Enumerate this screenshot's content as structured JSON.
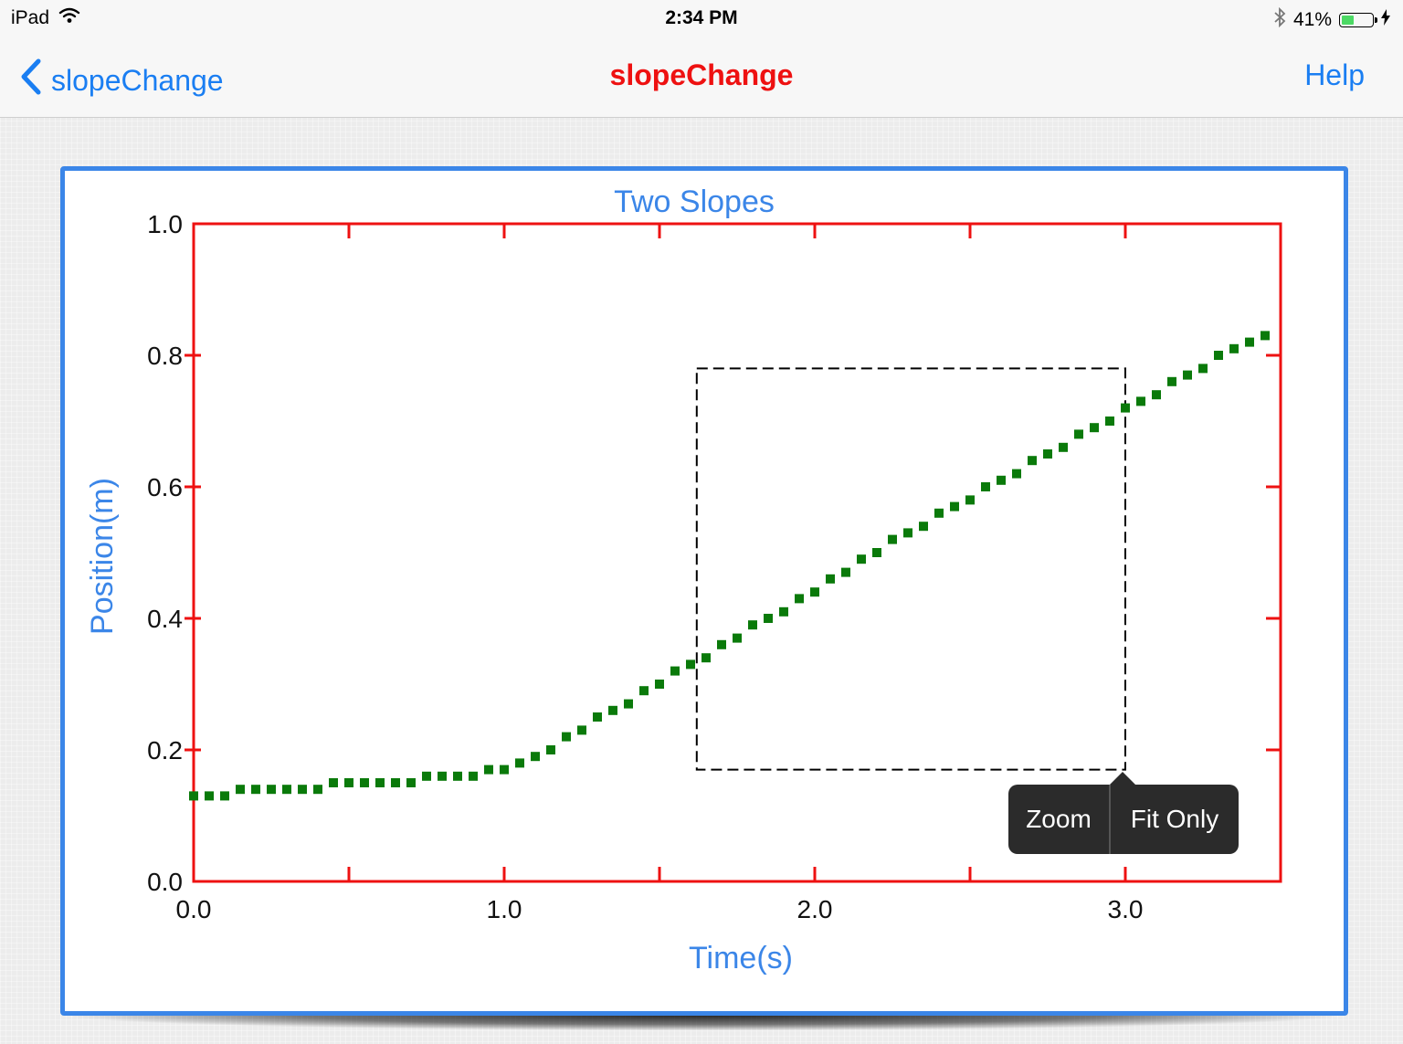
{
  "status_bar": {
    "device": "iPad",
    "time": "2:34 PM",
    "battery": "41%",
    "battery_fraction": 0.41,
    "battery_color": "#4cd964"
  },
  "nav": {
    "back_label": "slopeChange",
    "title": "slopeChange",
    "help_label": "Help",
    "accent": "#1a7ef2",
    "title_color": "#ee1111"
  },
  "popup": {
    "zoom_label": "Zoom",
    "fit_label": "Fit Only"
  },
  "chart_data": {
    "type": "scatter",
    "title": "Two Slopes",
    "xlabel": "Time(s)",
    "ylabel": "Position(m)",
    "xlim": [
      0,
      3.5
    ],
    "ylim": [
      0,
      1.0
    ],
    "x_ticks": [
      "0.0",
      "1.0",
      "2.0",
      "3.0"
    ],
    "y_ticks": [
      "0.0",
      "0.2",
      "0.4",
      "0.6",
      "0.8",
      "1.0"
    ],
    "grid": false,
    "frame_color": "#ee1111",
    "marker_color": "#0a7a0a",
    "title_color": "#3b86e8",
    "selection": {
      "x": [
        1.62,
        3.0
      ],
      "y": [
        0.17,
        0.78
      ]
    },
    "series": [
      {
        "x": [
          0.0,
          0.05,
          0.1,
          0.15,
          0.2,
          0.25,
          0.3,
          0.35,
          0.4,
          0.45,
          0.5,
          0.55,
          0.6,
          0.65,
          0.7,
          0.75,
          0.8,
          0.85,
          0.9,
          0.95,
          1.0,
          1.05,
          1.1,
          1.15,
          1.2,
          1.25,
          1.3,
          1.35,
          1.4,
          1.45,
          1.5,
          1.55,
          1.6,
          1.65,
          1.7,
          1.75,
          1.8,
          1.85,
          1.9,
          1.95,
          2.0,
          2.05,
          2.1,
          2.15,
          2.2,
          2.25,
          2.3,
          2.35,
          2.4,
          2.45,
          2.5,
          2.55,
          2.6,
          2.65,
          2.7,
          2.75,
          2.8,
          2.85,
          2.9,
          2.95,
          3.0,
          3.05,
          3.1,
          3.15,
          3.2,
          3.25,
          3.3,
          3.35,
          3.4,
          3.45
        ],
        "y": [
          0.13,
          0.13,
          0.13,
          0.14,
          0.14,
          0.14,
          0.14,
          0.14,
          0.14,
          0.15,
          0.15,
          0.15,
          0.15,
          0.15,
          0.15,
          0.16,
          0.16,
          0.16,
          0.16,
          0.17,
          0.17,
          0.18,
          0.19,
          0.2,
          0.22,
          0.23,
          0.25,
          0.26,
          0.27,
          0.29,
          0.3,
          0.32,
          0.33,
          0.34,
          0.36,
          0.37,
          0.39,
          0.4,
          0.41,
          0.43,
          0.44,
          0.46,
          0.47,
          0.49,
          0.5,
          0.52,
          0.53,
          0.54,
          0.56,
          0.57,
          0.58,
          0.6,
          0.61,
          0.62,
          0.64,
          0.65,
          0.66,
          0.68,
          0.69,
          0.7,
          0.72,
          0.73,
          0.74,
          0.76,
          0.77,
          0.78,
          0.8,
          0.81,
          0.82,
          0.83
        ]
      }
    ]
  }
}
